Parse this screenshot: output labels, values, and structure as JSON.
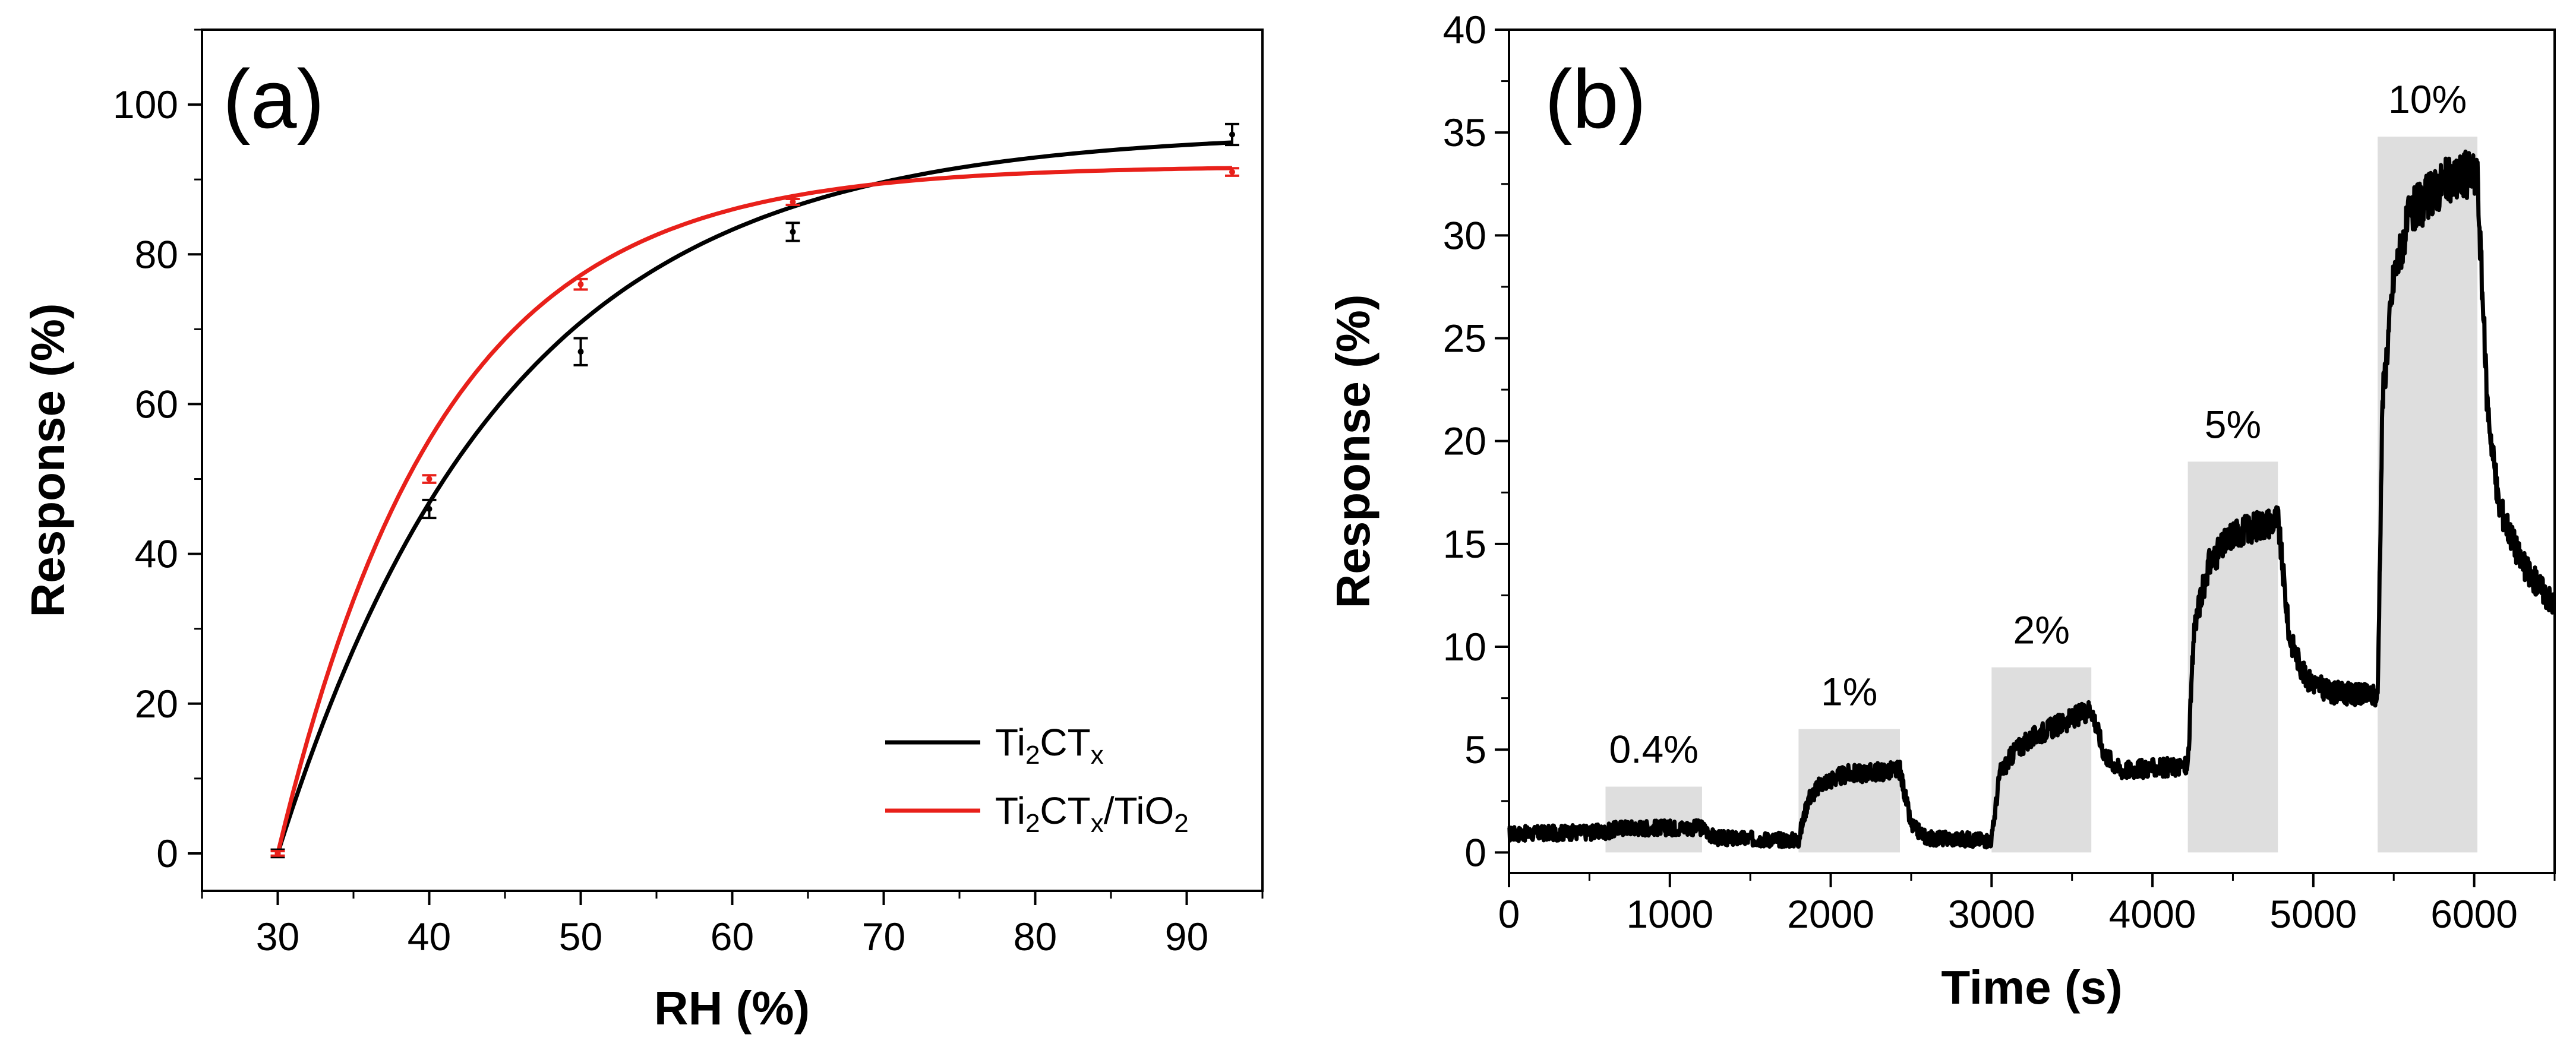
{
  "colors": {
    "black": "#000000",
    "red": "#e8201a",
    "shade": "#dedede"
  },
  "chart_data": [
    {
      "type": "line",
      "panel": "(a)",
      "title": "",
      "xlabel": "RH (%)",
      "ylabel": "Response (%)",
      "xlim": [
        25,
        95
      ],
      "ylim": [
        -5,
        110
      ],
      "xticks": [
        30,
        40,
        50,
        60,
        70,
        80,
        90
      ],
      "yticks": [
        0,
        20,
        40,
        60,
        80,
        100
      ],
      "grid": false,
      "legend_position": "bottom-right",
      "series": [
        {
          "name": "Ti2CTx",
          "legend_main": "Ti",
          "legend_s1": "2",
          "legend_mid": "CT",
          "legend_s2": "x",
          "legend_tail": "",
          "legend_s3": "",
          "color": "#000000",
          "points": [
            {
              "x": 30,
              "y": 0,
              "err": 0.5
            },
            {
              "x": 40,
              "y": 46,
              "err": 1.2
            },
            {
              "x": 50,
              "y": 67,
              "err": 1.8
            },
            {
              "x": 64,
              "y": 83,
              "err": 1.2
            },
            {
              "x": 93,
              "y": 96,
              "err": 1.4
            }
          ],
          "fit": {
            "a": 96.4,
            "k": 0.0665,
            "x0": 30
          }
        },
        {
          "name": "Ti2CTx/TiO2",
          "legend_main": "Ti",
          "legend_s1": "2",
          "legend_mid": "CT",
          "legend_s2": "x",
          "legend_tail": "/TiO",
          "legend_s3": "2",
          "color": "#e8201a",
          "points": [
            {
              "x": 30,
              "y": 0,
              "err": 0.3
            },
            {
              "x": 40,
              "y": 50,
              "err": 0.5
            },
            {
              "x": 50,
              "y": 76,
              "err": 0.7
            },
            {
              "x": 64,
              "y": 87,
              "err": 0.4
            },
            {
              "x": 93,
              "y": 91,
              "err": 0.5
            }
          ],
          "fit": {
            "a": 91.8,
            "k": 0.092,
            "x0": 30
          }
        }
      ]
    },
    {
      "type": "line",
      "panel": "(b)",
      "title": "",
      "xlabel": "Time (s)",
      "ylabel": "Response (%)",
      "xlim": [
        0,
        6500
      ],
      "ylim": [
        -1,
        40
      ],
      "xticks": [
        0,
        1000,
        2000,
        3000,
        4000,
        5000,
        6000
      ],
      "yticks": [
        0,
        5,
        10,
        15,
        20,
        25,
        30,
        35,
        40
      ],
      "grid": false,
      "exposures": [
        {
          "label": "0.4%",
          "start": 600,
          "end": 1200,
          "level": 3.2
        },
        {
          "label": "1%",
          "start": 1800,
          "end": 2430,
          "level": 6.0
        },
        {
          "label": "2%",
          "start": 3000,
          "end": 3620,
          "level": 9.0
        },
        {
          "label": "5%",
          "start": 4220,
          "end": 4780,
          "level": 19.0
        },
        {
          "label": "10%",
          "start": 5400,
          "end": 6020,
          "level": 34.8
        }
      ],
      "response_trace": [
        [
          0,
          0.9
        ],
        [
          600,
          1.0
        ],
        [
          700,
          1.2
        ],
        [
          1200,
          1.2
        ],
        [
          1280,
          0.7
        ],
        [
          1800,
          0.6
        ],
        [
          1860,
          2.6
        ],
        [
          1950,
          3.4
        ],
        [
          2100,
          3.8
        ],
        [
          2430,
          4.0
        ],
        [
          2500,
          1.3
        ],
        [
          2600,
          0.7
        ],
        [
          3000,
          0.6
        ],
        [
          3050,
          3.8
        ],
        [
          3150,
          5.0
        ],
        [
          3300,
          5.8
        ],
        [
          3500,
          6.5
        ],
        [
          3620,
          7.0
        ],
        [
          3700,
          4.8
        ],
        [
          3800,
          4.0
        ],
        [
          4220,
          4.2
        ],
        [
          4260,
          11.0
        ],
        [
          4350,
          14.0
        ],
        [
          4500,
          15.5
        ],
        [
          4780,
          16.2
        ],
        [
          4850,
          10.5
        ],
        [
          4950,
          8.5
        ],
        [
          5100,
          7.8
        ],
        [
          5400,
          7.6
        ],
        [
          5430,
          22.0
        ],
        [
          5500,
          28.0
        ],
        [
          5600,
          31.0
        ],
        [
          5800,
          32.5
        ],
        [
          5950,
          33.0
        ],
        [
          6020,
          32.8
        ],
        [
          6080,
          22.0
        ],
        [
          6150,
          17.0
        ],
        [
          6300,
          14.0
        ],
        [
          6500,
          12.0
        ]
      ]
    }
  ]
}
